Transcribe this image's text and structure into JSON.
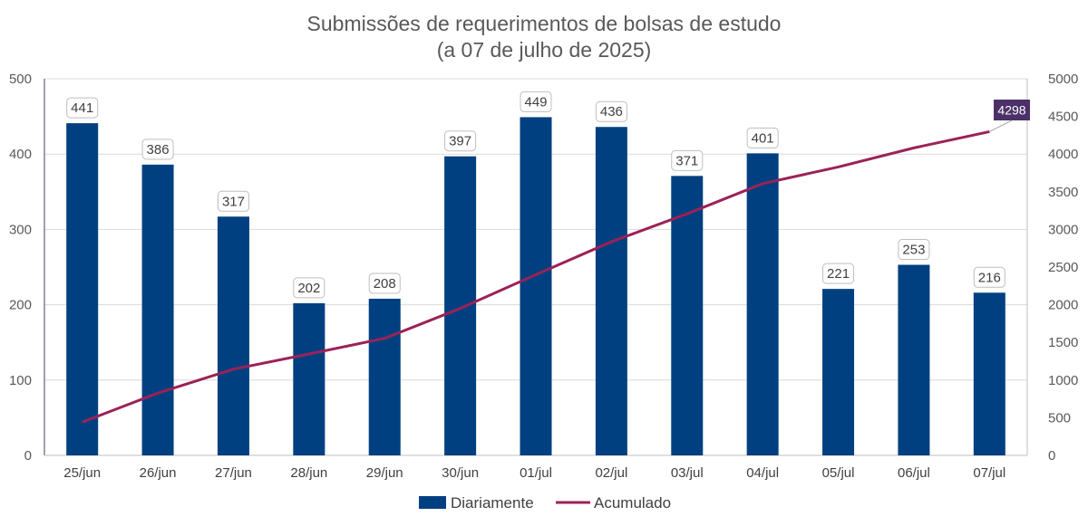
{
  "chart_data": {
    "type": "bar",
    "title": "Submissões de requerimentos de bolsas de estudo",
    "subtitle": "(a 07 de julho de 2025)",
    "categories": [
      "25/jun",
      "26/jun",
      "27/jun",
      "28/jun",
      "29/jun",
      "30/jun",
      "01/jul",
      "02/jul",
      "03/jul",
      "04/jul",
      "05/jul",
      "06/jul",
      "07/jul"
    ],
    "series": [
      {
        "name": "Diariamente",
        "type": "bar",
        "axis": "left",
        "color": "#004080",
        "values": [
          441,
          386,
          317,
          202,
          208,
          397,
          449,
          436,
          371,
          401,
          221,
          253,
          216
        ],
        "data_labels": [
          "441",
          "386",
          "317",
          "202",
          "208",
          "397",
          "449",
          "436",
          "371",
          "401",
          "221",
          "253",
          "216"
        ]
      },
      {
        "name": "Acumulado",
        "type": "line",
        "axis": "right",
        "color": "#9b2257",
        "values": [
          441,
          827,
          1144,
          1346,
          1554,
          1951,
          2400,
          2836,
          3207,
          3608,
          3829,
          4082,
          4298
        ],
        "end_label": "4298",
        "end_label_color": "#4b3168"
      }
    ],
    "y_left": {
      "min": 0,
      "max": 500,
      "ticks": [
        "0",
        "100",
        "200",
        "300",
        "400",
        "500"
      ]
    },
    "y_right": {
      "min": 0,
      "max": 5000,
      "ticks": [
        "0",
        "500",
        "1000",
        "1500",
        "2000",
        "2500",
        "3000",
        "3500",
        "4000",
        "4500",
        "5000"
      ]
    },
    "grid": true,
    "legend": "bottom"
  }
}
